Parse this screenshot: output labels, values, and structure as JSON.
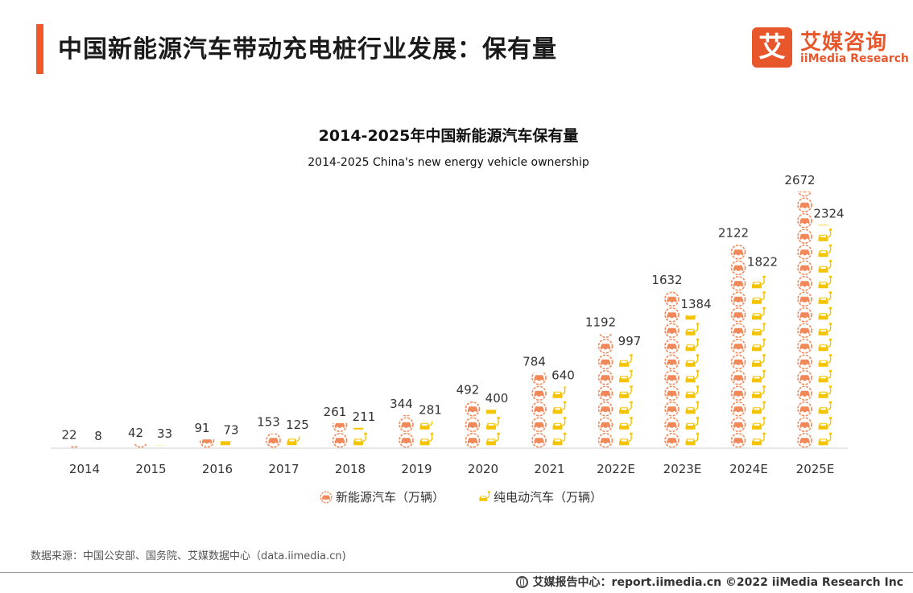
{
  "header": {
    "title": "中国新能源汽车带动充电桩行业发展：保有量",
    "accent_color": "#f0582a"
  },
  "logo": {
    "mark": "艾",
    "name_cn": "艾媒咨询",
    "name_en": "iiMedia Research",
    "color": "#e8572c"
  },
  "chart_data": {
    "type": "bar",
    "title": "2014-2025年中国新能源汽车保有量",
    "subtitle": "2014-2025 China's new energy vehicle ownership",
    "categories": [
      "2014",
      "2015",
      "2016",
      "2017",
      "2018",
      "2019",
      "2020",
      "2021",
      "2022E",
      "2023E",
      "2024E",
      "2025E"
    ],
    "series": [
      {
        "name": "新能源汽车（万辆）",
        "color": "#f0885a",
        "icon": "car-icon",
        "values": [
          22,
          42,
          91,
          153,
          261,
          344,
          492,
          784,
          1192,
          1632,
          2122,
          2672
        ]
      },
      {
        "name": "纯电动汽车（万辆）",
        "color": "#f5c400",
        "icon": "charging-car-icon",
        "values": [
          8,
          33,
          73,
          125,
          211,
          281,
          400,
          640,
          997,
          1384,
          1822,
          2324
        ]
      }
    ],
    "ylim": [
      0,
      2672
    ],
    "legend_position": "bottom",
    "grid": false
  },
  "source": "数据来源：中国公安部、国务院、艾媒数据中心（data.iimedia.cn)",
  "footer": {
    "text": "艾媒报告中心：report.iimedia.cn  ©2022  iiMedia Research  Inc"
  }
}
